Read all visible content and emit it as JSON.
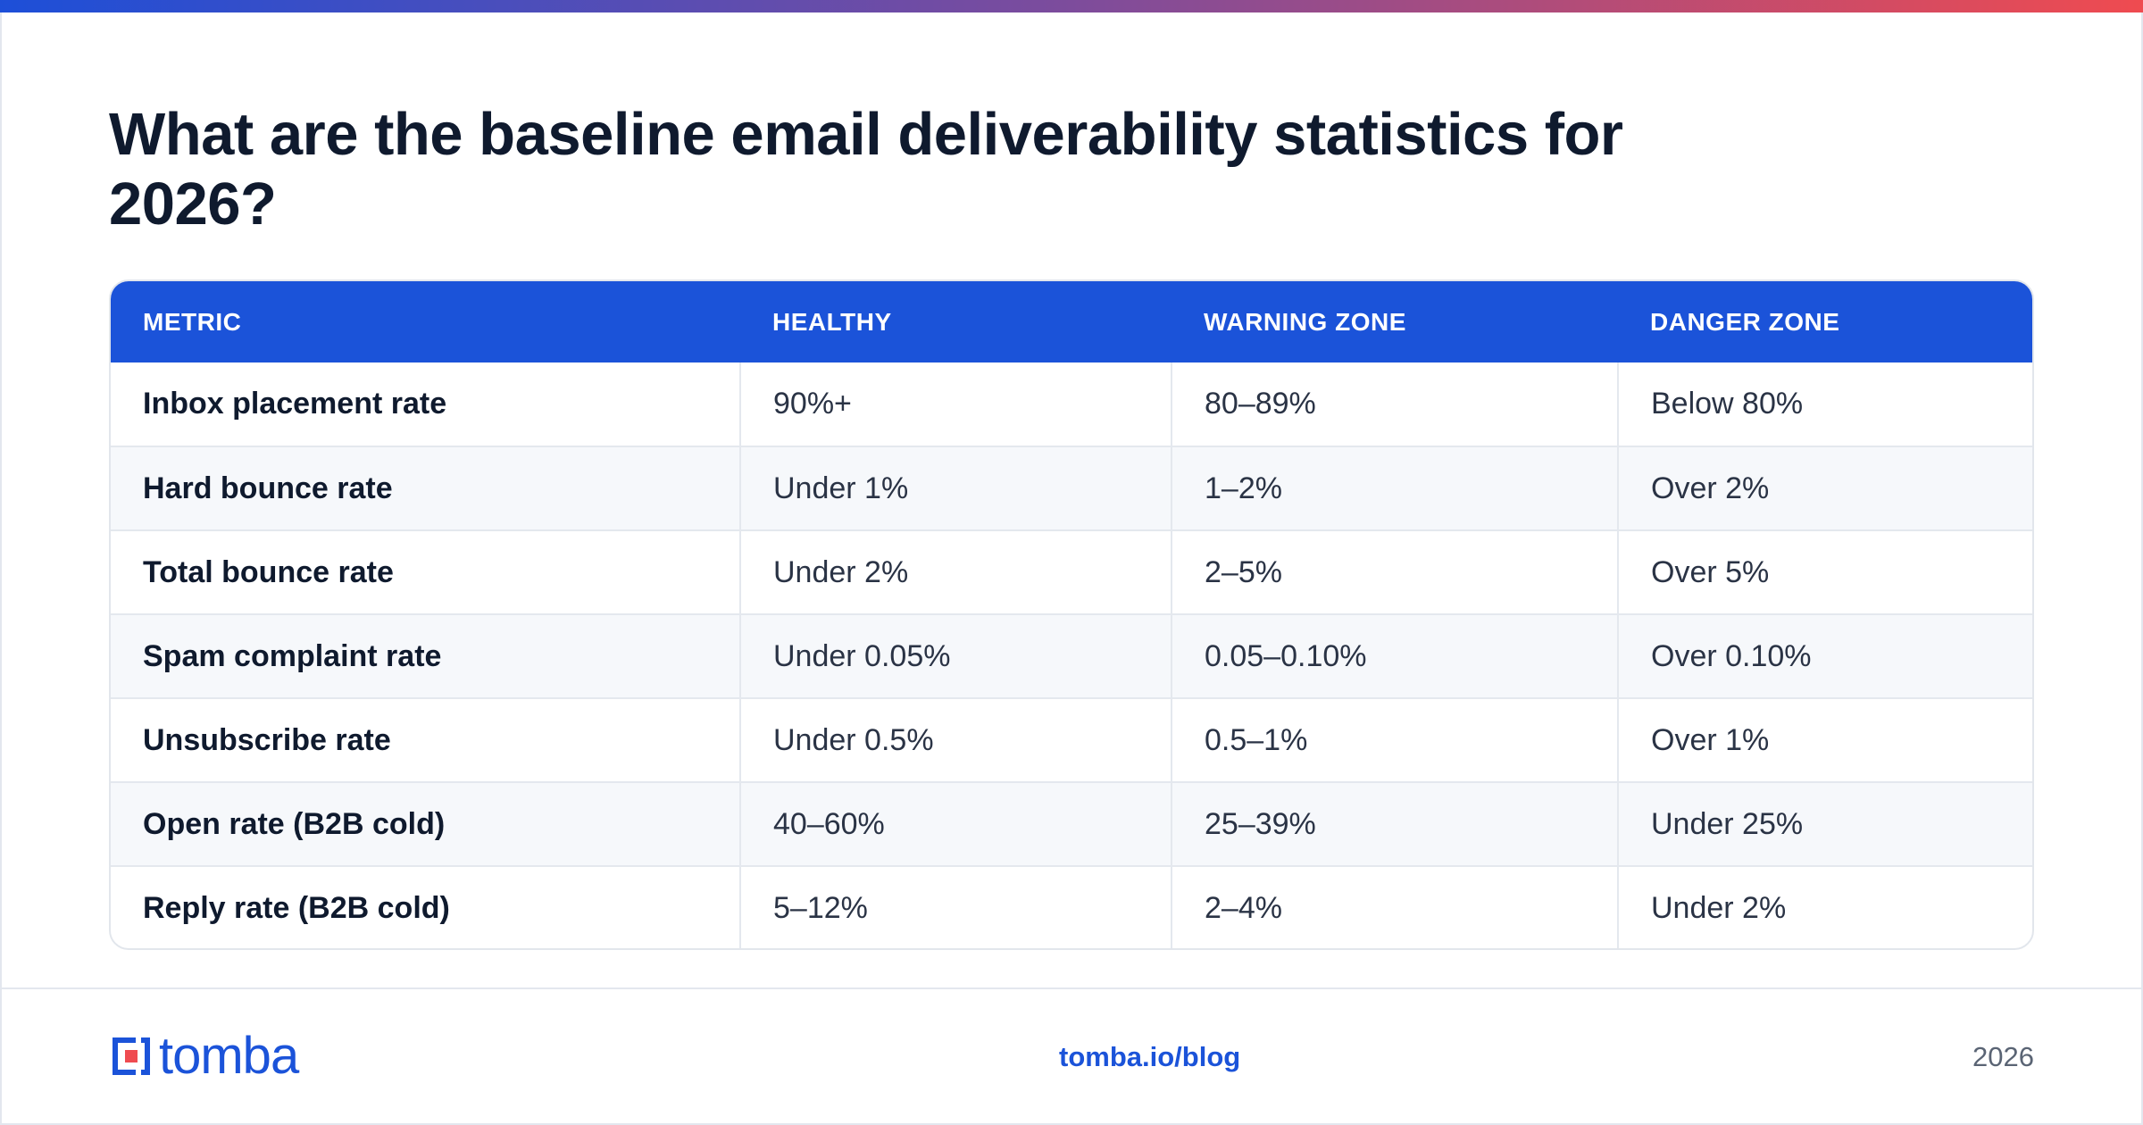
{
  "title": "What are the baseline email deliverability statistics for 2026?",
  "table": {
    "headers": [
      "METRIC",
      "HEALTHY",
      "WARNING ZONE",
      "DANGER ZONE"
    ],
    "rows": [
      [
        "Inbox placement rate",
        "90%+",
        "80–89%",
        "Below 80%"
      ],
      [
        "Hard bounce rate",
        "Under 1%",
        "1–2%",
        "Over 2%"
      ],
      [
        "Total bounce rate",
        "Under 2%",
        "2–5%",
        "Over 5%"
      ],
      [
        "Spam complaint rate",
        "Under 0.05%",
        "0.05–0.10%",
        "Over 0.10%"
      ],
      [
        "Unsubscribe rate",
        "Under 0.5%",
        "0.5–1%",
        "Over 1%"
      ],
      [
        "Open rate (B2B cold)",
        "40–60%",
        "25–39%",
        "Under 25%"
      ],
      [
        "Reply rate (B2B cold)",
        "5–12%",
        "2–4%",
        "Under 2%"
      ]
    ]
  },
  "footer": {
    "logo_text": "tomba",
    "logo_icon": "tomba-logo-icon",
    "link": "tomba.io/blog",
    "year": "2026"
  },
  "colors": {
    "brand_blue": "#1b53d9",
    "accent_red": "#ef4b50",
    "accent_purple": "#7d4c9c"
  }
}
